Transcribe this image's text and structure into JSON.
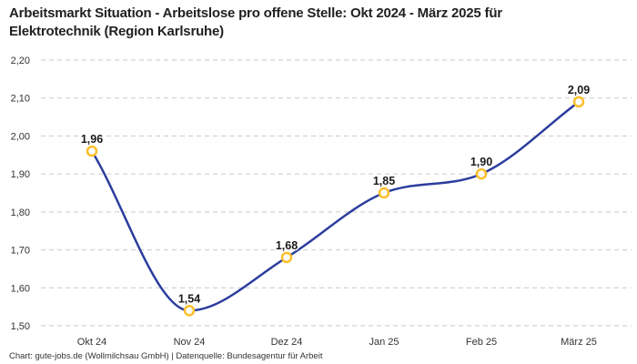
{
  "title_lines": [
    "Arbeitsmarkt Situation - Arbeitslose pro offene Stelle: Okt 2024 - März 2025 für",
    "Elektrotechnik (Region Karlsruhe)"
  ],
  "footer": "Chart: gute-jobs.de (Wollmilchsau GmbH) | Datenquelle: Bundesagentur für Arbeit",
  "chart_data": {
    "type": "line",
    "title": "Arbeitsmarkt Situation - Arbeitslose pro offene Stelle: Okt 2024 - März 2025 für Elektrotechnik (Region Karlsruhe)",
    "categories": [
      "Okt 24",
      "Nov 24",
      "Dez 24",
      "Jan 25",
      "Feb 25",
      "März 25"
    ],
    "values": [
      1.96,
      1.54,
      1.68,
      1.85,
      1.9,
      2.09
    ],
    "point_labels": [
      "1,96",
      "1,54",
      "1,68",
      "1,85",
      "1,90",
      "2,09"
    ],
    "xlabel": "",
    "ylabel": "",
    "ylim": [
      1.5,
      2.2
    ],
    "ytick_step": 0.1,
    "decimal_separator": ",",
    "grid": "horizontal-dashed",
    "legend": "none",
    "curve": "monotone",
    "colors": {
      "line": "#2b3d9e",
      "marker_ring": "#fcbf2b",
      "marker_fill": "#ffffff",
      "point_label": "#1a1a1a",
      "axis_text": "#333333",
      "gridline": "#c9c9c9",
      "title": "#212121"
    }
  }
}
